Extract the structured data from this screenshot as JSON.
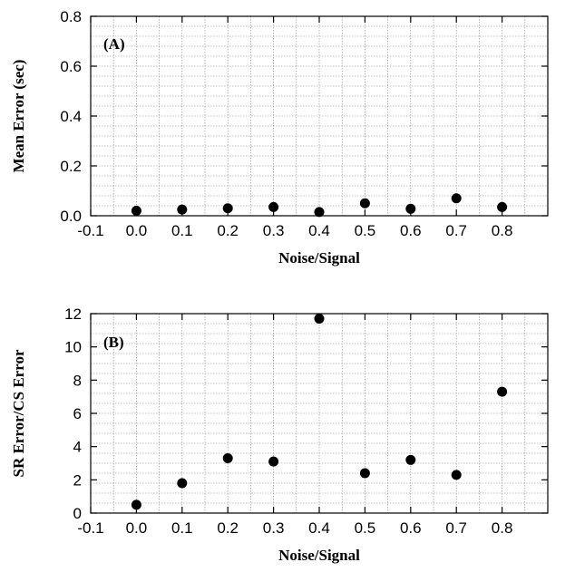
{
  "chart_data": [
    {
      "type": "scatter",
      "panel_label": "(A)",
      "xlabel": "Noise/Signal",
      "ylabel": "Mean Error (sec)",
      "xlim": [
        -0.1,
        0.9
      ],
      "ylim": [
        0,
        0.8
      ],
      "xticks": [
        -0.1,
        0.0,
        0.1,
        0.2,
        0.3,
        0.4,
        0.5,
        0.6,
        0.7,
        0.8
      ],
      "xtick_labels": [
        "-0.1",
        "0.0",
        "0.1",
        "0.2",
        "0.3",
        "0.4",
        "0.5",
        "0.6",
        "0.7",
        "0.8"
      ],
      "yticks": [
        0.0,
        0.2,
        0.4,
        0.6,
        0.8
      ],
      "ytick_labels": [
        "0.0",
        "0.2",
        "0.4",
        "0.6",
        "0.8"
      ],
      "grid": true,
      "x": [
        0.0,
        0.1,
        0.2,
        0.3,
        0.4,
        0.5,
        0.6,
        0.7,
        0.8
      ],
      "y": [
        0.02,
        0.025,
        0.03,
        0.035,
        0.015,
        0.05,
        0.028,
        0.07,
        0.035
      ]
    },
    {
      "type": "scatter",
      "panel_label": "(B)",
      "xlabel": "Noise/Signal",
      "ylabel": "SR Error/CS Error",
      "xlim": [
        -0.1,
        0.9
      ],
      "ylim": [
        0,
        12
      ],
      "xticks": [
        -0.1,
        0.0,
        0.1,
        0.2,
        0.3,
        0.4,
        0.5,
        0.6,
        0.7,
        0.8
      ],
      "xtick_labels": [
        "-0.1",
        "0.0",
        "0.1",
        "0.2",
        "0.3",
        "0.4",
        "0.5",
        "0.6",
        "0.7",
        "0.8"
      ],
      "yticks": [
        0,
        2,
        4,
        6,
        8,
        10,
        12
      ],
      "ytick_labels": [
        "0",
        "2",
        "4",
        "6",
        "8",
        "10",
        "12"
      ],
      "grid": true,
      "x": [
        0.0,
        0.1,
        0.2,
        0.3,
        0.4,
        0.5,
        0.6,
        0.7,
        0.8
      ],
      "y": [
        0.5,
        1.8,
        3.3,
        3.1,
        11.7,
        2.4,
        3.2,
        2.3,
        7.3
      ]
    }
  ]
}
